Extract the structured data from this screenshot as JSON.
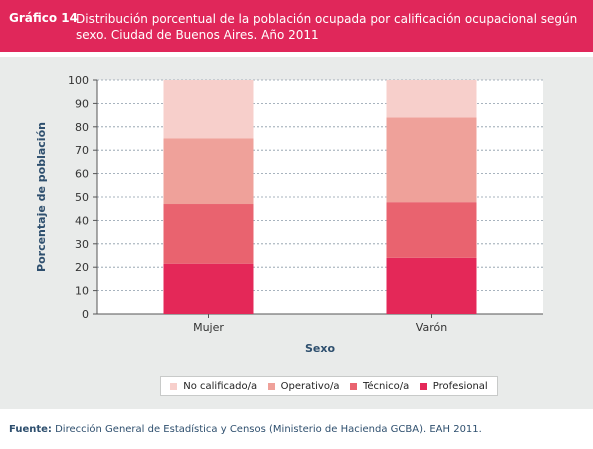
{
  "header": {
    "label": "Gráfico 14",
    "title": "Distribución porcentual de la población ocupada por calificación ocupacional según sexo. Ciudad de Buenos Aires. Año 2011"
  },
  "footer": {
    "label": "Fuente:",
    "text": "Dirección General de Estadística y Censos (Ministerio de Hacienda GCBA). EAH 2011."
  },
  "chart_data": {
    "type": "bar",
    "stacked": true,
    "xlabel": "Sexo",
    "ylabel": "Porcentaje de población",
    "ylim": [
      0,
      100
    ],
    "yticks": [
      0,
      10,
      20,
      30,
      40,
      50,
      60,
      70,
      80,
      90,
      100
    ],
    "grid": true,
    "legend_position": "bottom",
    "categories": [
      "Mujer",
      "Varón"
    ],
    "series": [
      {
        "name": "Profesional",
        "color": "#e42858",
        "values": [
          21.5,
          24.0
        ]
      },
      {
        "name": "Técnico/a",
        "color": "#e9636f",
        "values": [
          25.5,
          23.8
        ]
      },
      {
        "name": "Operativo/a",
        "color": "#efa19a",
        "values": [
          28.0,
          36.2
        ]
      },
      {
        "name": "No calificado/a",
        "color": "#f7cfcb",
        "values": [
          25.0,
          16.0
        ]
      }
    ],
    "legend_order": [
      "No calificado/a",
      "Operativo/a",
      "Técnico/a",
      "Profesional"
    ]
  }
}
